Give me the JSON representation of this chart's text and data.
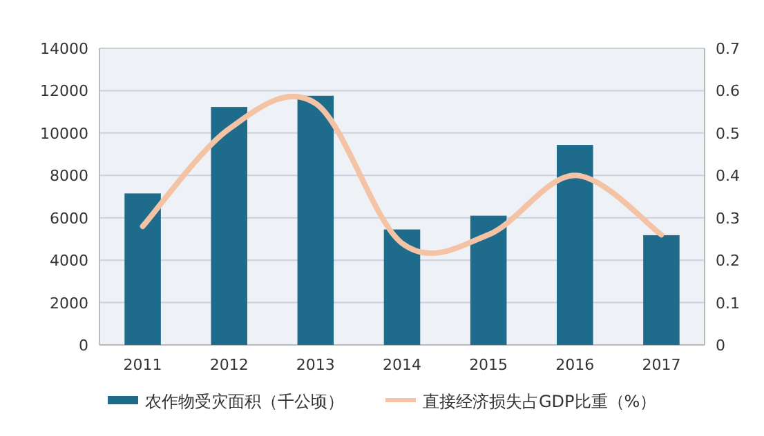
{
  "chart_data": {
    "type": "bar",
    "categories": [
      "2011",
      "2012",
      "2013",
      "2014",
      "2015",
      "2016",
      "2017"
    ],
    "series": [
      {
        "name": "农作物受灾面积（千公顷）",
        "color": "#1e6b8c",
        "values": [
          7150,
          11230,
          11760,
          5450,
          6100,
          9440,
          5180
        ]
      },
      {
        "name": "直接经济损失占GDP比重（%）",
        "color": "#f4c3a5",
        "type": "line",
        "axis": "y2",
        "values": [
          0.28,
          0.51,
          0.57,
          0.24,
          0.26,
          0.4,
          0.26
        ]
      }
    ],
    "ylim": [
      0,
      14000
    ],
    "yticks": [
      0,
      2000,
      4000,
      6000,
      8000,
      10000,
      12000,
      14000
    ],
    "y2lim": [
      0,
      0.7
    ],
    "y2ticks": [
      0,
      0.1,
      0.2,
      0.3,
      0.4,
      0.5,
      0.6,
      0.7
    ],
    "grid": "y",
    "legend": "bottom",
    "marker": "none",
    "line_style": "solid"
  }
}
